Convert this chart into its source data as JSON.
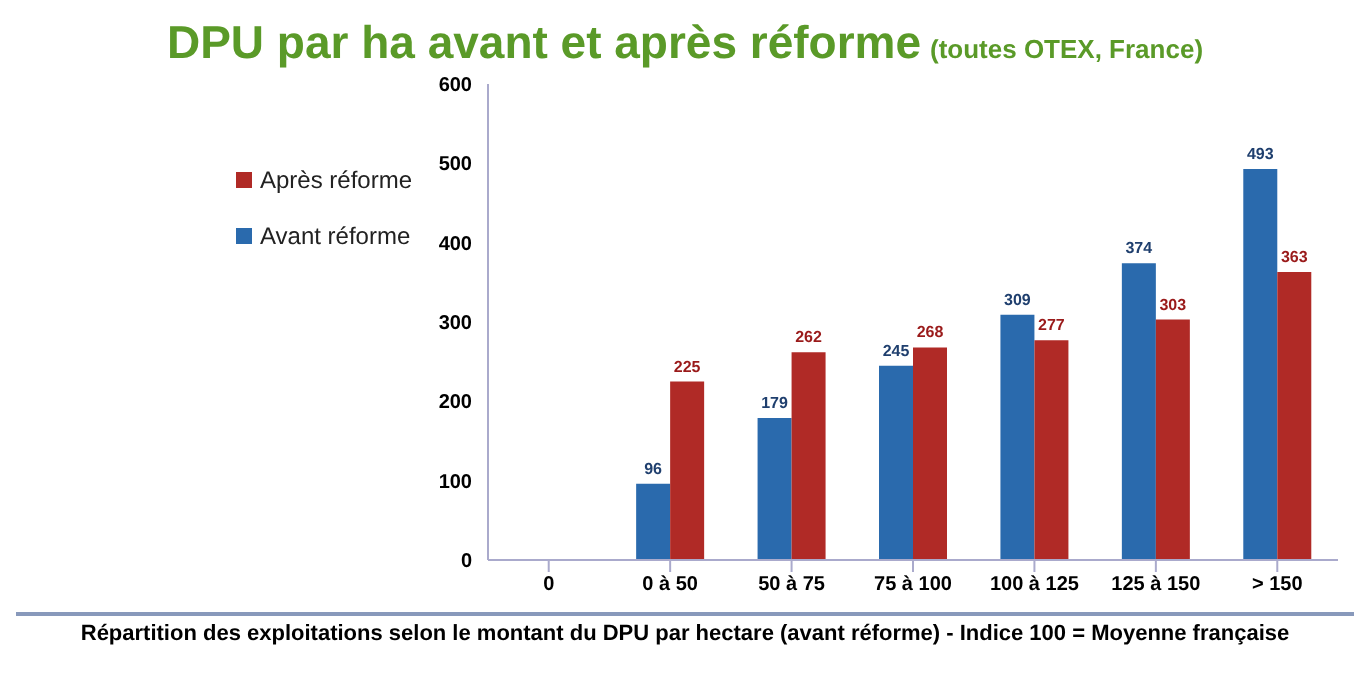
{
  "chart_data": {
    "type": "bar",
    "title": "DPU par ha avant et après réforme",
    "subtitle": "(toutes OTEX, France)",
    "xlabel": "Répartition des exploitations selon le montant du DPU par hectare (avant réforme) - Indice 100 = Moyenne française",
    "categories": [
      "0",
      "0 à 50",
      "50 à 75",
      "75 à 100",
      "100 à 125",
      "125 à 150",
      "> 150"
    ],
    "series": [
      {
        "name": "Avant réforme",
        "color": "#2a6aad",
        "values": [
          null,
          96,
          179,
          245,
          309,
          374,
          493
        ]
      },
      {
        "name": "Après réforme",
        "color": "#b02a26",
        "values": [
          null,
          225,
          262,
          268,
          277,
          303,
          363
        ]
      }
    ],
    "ylim": [
      0,
      600
    ],
    "yticks": [
      0,
      100,
      200,
      300,
      400,
      500,
      600
    ],
    "grid": false,
    "legend": "top left",
    "data_labels": true
  }
}
